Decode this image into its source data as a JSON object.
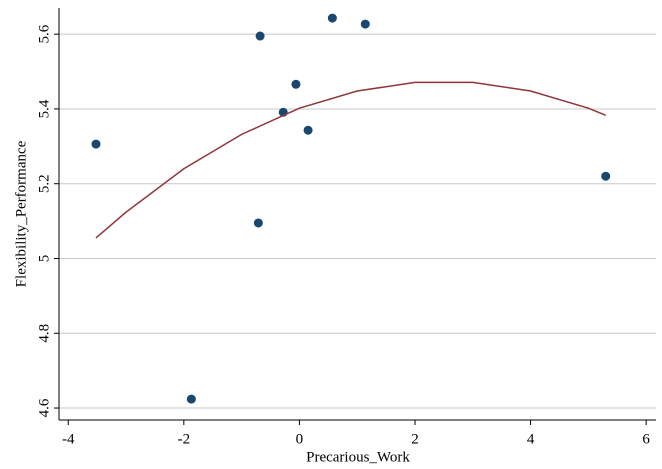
{
  "chart_data": {
    "type": "scatter",
    "x_label": "Precarious_Work",
    "y_label": "Flexibility_Performance",
    "xlim": [
      -4.16,
      6.17
    ],
    "xticks": [
      -4,
      -2,
      0,
      2,
      4,
      6
    ],
    "ylim": [
      4.568,
      5.67
    ],
    "yticks": [
      4.6,
      4.8,
      5,
      5.2,
      5.4,
      5.6
    ],
    "grid": true,
    "series": [
      {
        "type": "scatter",
        "color": "#1a476f",
        "x": [
          -3.52,
          -1.87,
          -0.71,
          -0.68,
          -0.28,
          -0.06,
          0.15,
          0.57,
          1.14,
          5.3
        ],
        "values": [
          5.306,
          4.624,
          5.095,
          5.595,
          5.391,
          5.466,
          5.343,
          5.643,
          5.627,
          5.22
        ]
      },
      {
        "type": "line",
        "color": "#90353b",
        "x": [
          -3.52,
          -3,
          -2,
          -1,
          0,
          1,
          2,
          3,
          4,
          5,
          5.3
        ],
        "values": [
          5.055,
          5.124,
          5.24,
          5.332,
          5.402,
          5.448,
          5.471,
          5.471,
          5.448,
          5.402,
          5.383
        ]
      }
    ]
  }
}
